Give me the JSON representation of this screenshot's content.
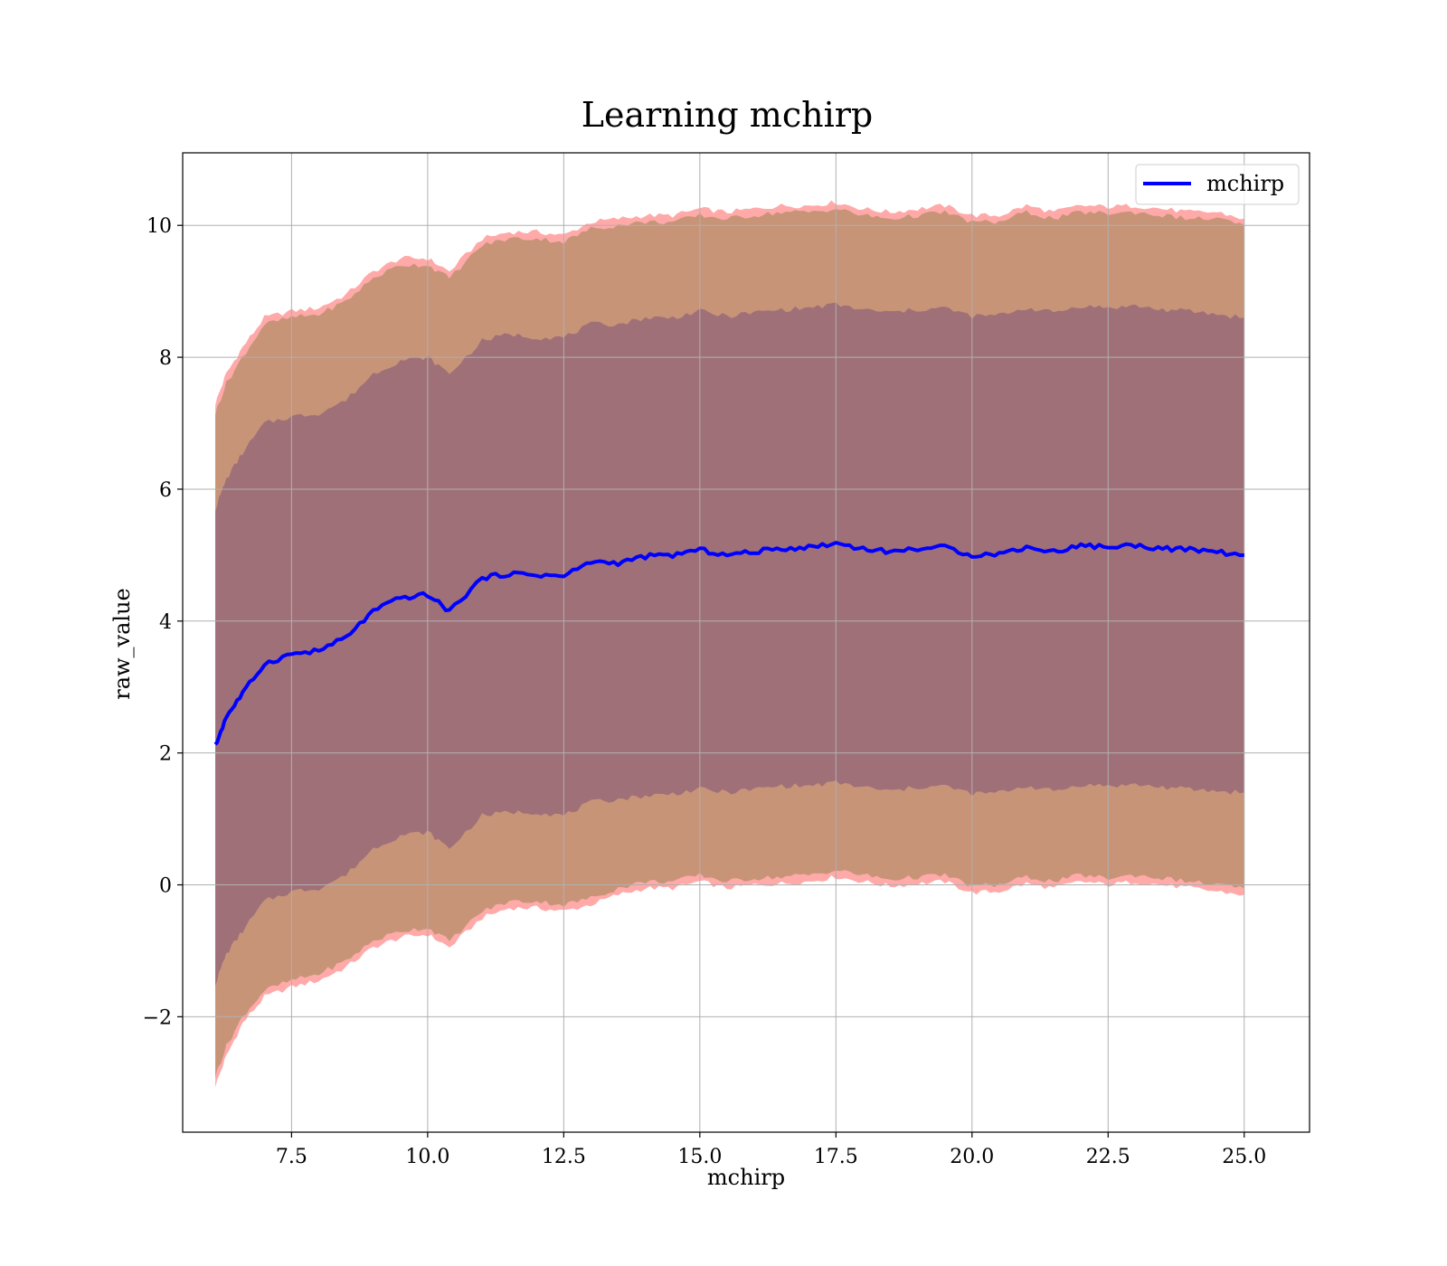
{
  "chart_data": {
    "type": "area",
    "title": "Learning mchirp",
    "xlabel": "mchirp",
    "ylabel": "raw_value",
    "xlim": [
      5.5,
      26.2
    ],
    "ylim": [
      -3.75,
      11.1
    ],
    "xticks": [
      7.5,
      10.0,
      12.5,
      15.0,
      17.5,
      20.0,
      22.5,
      25.0
    ],
    "xtick_labels": [
      "7.5",
      "10.0",
      "12.5",
      "15.0",
      "17.5",
      "20.0",
      "22.5",
      "25.0"
    ],
    "yticks": [
      -2,
      0,
      2,
      4,
      6,
      8,
      10
    ],
    "ytick_labels": [
      "−2",
      "0",
      "2",
      "4",
      "6",
      "8",
      "10"
    ],
    "grid": true,
    "legend": {
      "position": "top-right",
      "entries": [
        "mchirp"
      ]
    },
    "colors": {
      "mean_line": "#0000ff",
      "outer_band": "#ff9a9a",
      "middle_band": "#c89478",
      "inner_band": "#a07078",
      "grid": "#b0b0b0"
    },
    "x": [
      6.1,
      6.3,
      6.6,
      7.0,
      7.5,
      8.0,
      8.5,
      9.0,
      9.5,
      10.0,
      10.4,
      11.0,
      11.5,
      12.0,
      12.5,
      13.0,
      13.5,
      14.0,
      14.5,
      15.0,
      15.5,
      16.0,
      16.5,
      17.0,
      17.5,
      18.0,
      18.5,
      19.0,
      19.5,
      20.0,
      20.5,
      21.0,
      21.5,
      22.0,
      22.5,
      23.0,
      23.5,
      24.0,
      24.5,
      25.0
    ],
    "series": [
      {
        "name": "mchirp",
        "values": [
          2.1,
          2.55,
          2.9,
          3.35,
          3.5,
          3.55,
          3.75,
          4.15,
          4.35,
          4.4,
          4.15,
          4.65,
          4.72,
          4.7,
          4.68,
          4.9,
          4.88,
          4.98,
          5.0,
          5.08,
          5.0,
          5.05,
          5.1,
          5.12,
          5.18,
          5.1,
          5.05,
          5.1,
          5.12,
          5.0,
          5.02,
          5.12,
          5.05,
          5.15,
          5.12,
          5.15,
          5.1,
          5.08,
          5.05,
          5.0
        ]
      }
    ],
    "bands": [
      {
        "lower": [
          -3.05,
          -2.6,
          -2.1,
          -1.7,
          -1.55,
          -1.45,
          -1.25,
          -0.95,
          -0.8,
          -0.75,
          -0.95,
          -0.5,
          -0.35,
          -0.35,
          -0.4,
          -0.3,
          -0.15,
          -0.05,
          -0.05,
          0.05,
          -0.05,
          0.0,
          0.02,
          0.05,
          0.12,
          0.05,
          -0.02,
          0.02,
          0.05,
          -0.12,
          -0.1,
          0.02,
          -0.05,
          0.05,
          0.0,
          0.05,
          0.0,
          -0.05,
          -0.1,
          -0.15
        ],
        "upper": [
          7.3,
          7.75,
          8.15,
          8.6,
          8.7,
          8.75,
          8.95,
          9.3,
          9.5,
          9.5,
          9.3,
          9.8,
          9.9,
          9.9,
          9.85,
          10.05,
          10.1,
          10.15,
          10.15,
          10.25,
          10.2,
          10.25,
          10.3,
          10.3,
          10.35,
          10.25,
          10.2,
          10.25,
          10.3,
          10.15,
          10.15,
          10.3,
          10.2,
          10.3,
          10.28,
          10.3,
          10.25,
          10.2,
          10.2,
          10.1
        ]
      },
      {
        "lower": [
          -2.9,
          -2.45,
          -2.0,
          -1.6,
          -1.45,
          -1.35,
          -1.15,
          -0.85,
          -0.7,
          -0.65,
          -0.85,
          -0.4,
          -0.25,
          -0.25,
          -0.3,
          -0.2,
          -0.05,
          0.05,
          0.05,
          0.15,
          0.05,
          0.1,
          0.12,
          0.15,
          0.22,
          0.15,
          0.08,
          0.12,
          0.15,
          -0.02,
          0.0,
          0.12,
          0.05,
          0.15,
          0.1,
          0.15,
          0.1,
          0.05,
          0.0,
          -0.05
        ],
        "upper": [
          7.15,
          7.6,
          8.0,
          8.5,
          8.6,
          8.65,
          8.85,
          9.2,
          9.4,
          9.4,
          9.2,
          9.7,
          9.8,
          9.8,
          9.75,
          9.95,
          10.0,
          10.05,
          10.05,
          10.15,
          10.1,
          10.15,
          10.2,
          10.2,
          10.25,
          10.15,
          10.1,
          10.15,
          10.2,
          10.05,
          10.05,
          10.2,
          10.1,
          10.2,
          10.18,
          10.2,
          10.15,
          10.1,
          10.1,
          10.0
        ]
      },
      {
        "lower": [
          -1.5,
          -1.05,
          -0.7,
          -0.25,
          -0.1,
          -0.05,
          0.15,
          0.55,
          0.75,
          0.8,
          0.55,
          1.05,
          1.1,
          1.1,
          1.05,
          1.25,
          1.3,
          1.35,
          1.38,
          1.45,
          1.4,
          1.45,
          1.5,
          1.5,
          1.55,
          1.48,
          1.42,
          1.48,
          1.5,
          1.38,
          1.4,
          1.5,
          1.42,
          1.52,
          1.5,
          1.52,
          1.48,
          1.45,
          1.42,
          1.4
        ],
        "upper": [
          5.7,
          6.15,
          6.55,
          7.0,
          7.1,
          7.15,
          7.35,
          7.75,
          7.95,
          8.0,
          7.75,
          8.25,
          8.35,
          8.3,
          8.3,
          8.5,
          8.5,
          8.6,
          8.6,
          8.7,
          8.62,
          8.68,
          8.72,
          8.75,
          8.8,
          8.72,
          8.68,
          8.72,
          8.75,
          8.62,
          8.64,
          8.75,
          8.68,
          8.78,
          8.75,
          8.78,
          8.72,
          8.7,
          8.65,
          8.6
        ]
      }
    ]
  }
}
